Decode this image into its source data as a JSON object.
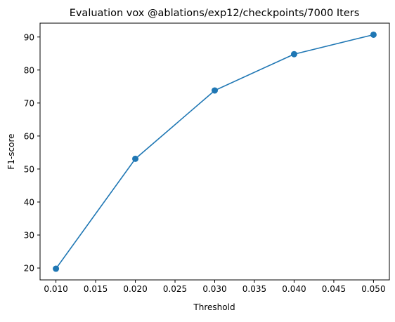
{
  "chart_data": {
    "type": "line",
    "title": "Evaluation vox @ablations/exp12/checkpoints/7000 Iters",
    "xlabel": "Threshold",
    "ylabel": "F1-score",
    "x": [
      0.01,
      0.02,
      0.03,
      0.04,
      0.05
    ],
    "series": [
      {
        "values": [
          19.8,
          53.1,
          73.8,
          84.8,
          90.7
        ],
        "color": "#1f77b4",
        "marker": "circle"
      }
    ],
    "xlim": [
      0.008,
      0.052
    ],
    "ylim": [
      16.4,
      94.2
    ],
    "xticks": [
      0.01,
      0.015,
      0.02,
      0.025,
      0.03,
      0.035,
      0.04,
      0.045,
      0.05
    ],
    "xtick_labels": [
      "0.010",
      "0.015",
      "0.020",
      "0.025",
      "0.030",
      "0.035",
      "0.040",
      "0.045",
      "0.050"
    ],
    "yticks": [
      20,
      30,
      40,
      50,
      60,
      70,
      80,
      90
    ],
    "ytick_labels": [
      "20",
      "30",
      "40",
      "50",
      "60",
      "70",
      "80",
      "90"
    ],
    "grid": false,
    "legend": false
  }
}
